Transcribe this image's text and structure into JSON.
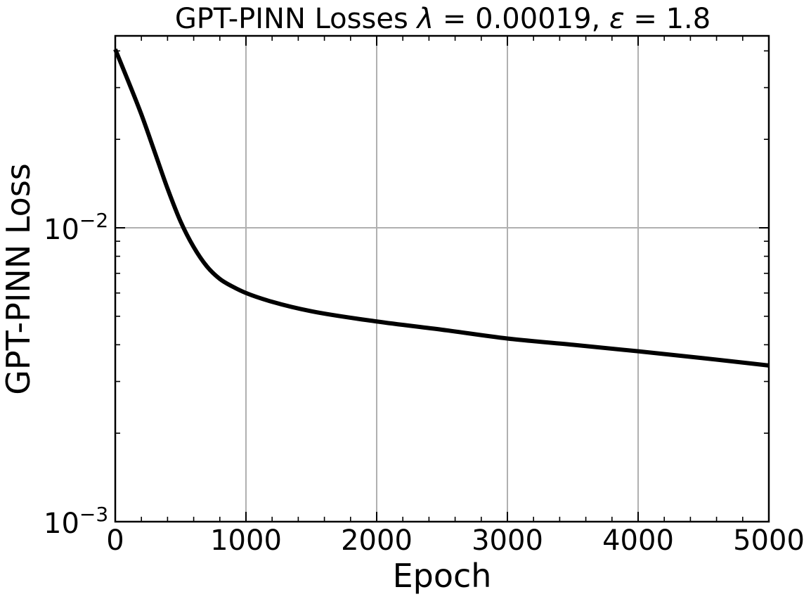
{
  "chart_data": {
    "type": "line",
    "title": {
      "prefix": "GPT-PINN Losses ",
      "lambda_symbol": "λ",
      "lambda_eq": " = ",
      "lambda_value": "0.00019",
      "separator": ", ",
      "epsilon_symbol": "ε",
      "epsilon_eq": " = ",
      "epsilon_value": "1.8"
    },
    "xlabel": "Epoch",
    "ylabel": "GPT-PINN Loss",
    "xlim": [
      0,
      5000
    ],
    "ylim": [
      0.001,
      0.045
    ],
    "yscale": "log",
    "grid": true,
    "x_ticks": [
      {
        "value": 0,
        "label": "0"
      },
      {
        "value": 1000,
        "label": "1000"
      },
      {
        "value": 2000,
        "label": "2000"
      },
      {
        "value": 3000,
        "label": "3000"
      },
      {
        "value": 4000,
        "label": "4000"
      },
      {
        "value": 5000,
        "label": "5000"
      }
    ],
    "y_ticks": [
      {
        "value": 0.001,
        "base": "10",
        "exponent": "−3"
      },
      {
        "value": 0.01,
        "base": "10",
        "exponent": "−2"
      }
    ],
    "series": [
      {
        "color": "#000000",
        "x": [
          0,
          100,
          200,
          300,
          400,
          500,
          600,
          700,
          800,
          900,
          1000,
          1200,
          1500,
          2000,
          2500,
          3000,
          3500,
          4000,
          4500,
          5000
        ],
        "y": [
          0.0405,
          0.0315,
          0.0243,
          0.0182,
          0.0136,
          0.0105,
          0.0086,
          0.0074,
          0.0067,
          0.0063,
          0.006,
          0.0056,
          0.0052,
          0.0048,
          0.0045,
          0.0042,
          0.004,
          0.0038,
          0.0036,
          0.0034
        ]
      }
    ]
  }
}
